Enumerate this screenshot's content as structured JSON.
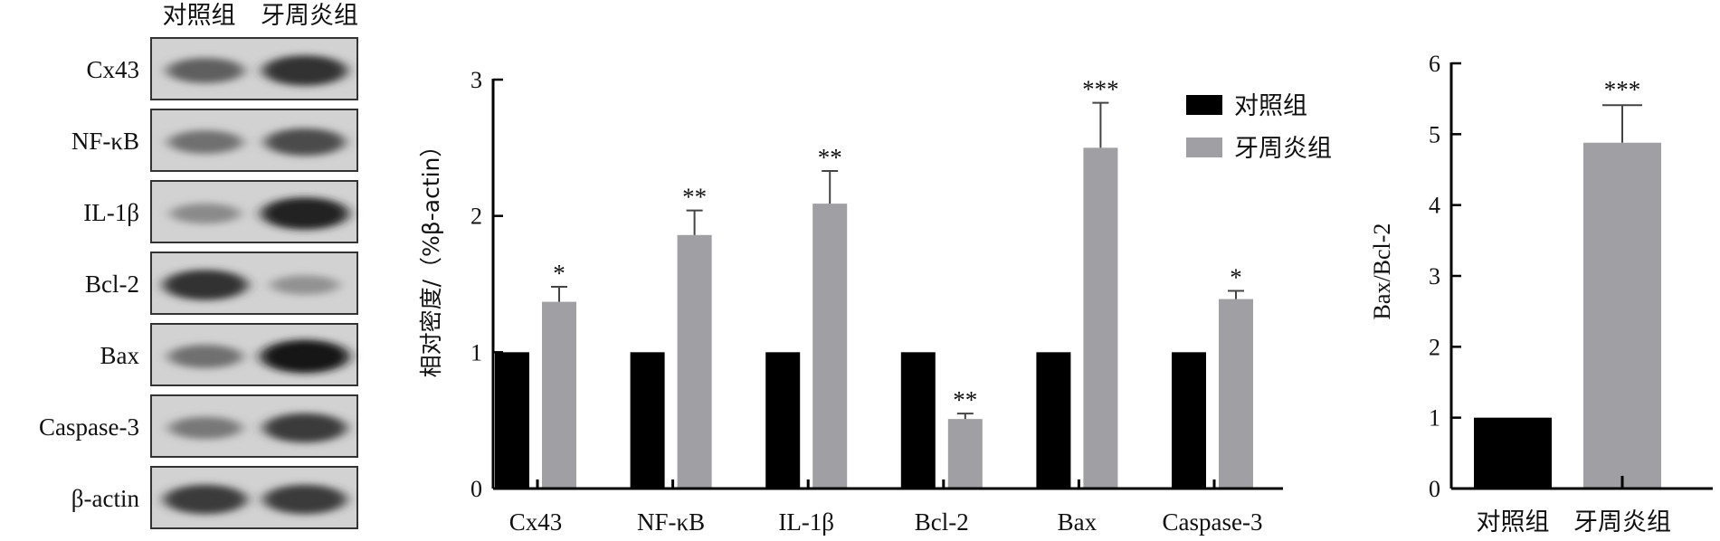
{
  "blot": {
    "headers": [
      "对照组",
      "牙周炎组"
    ],
    "rows": [
      {
        "label": "Cx43",
        "control": 0.55,
        "perio": 0.8
      },
      {
        "label": "NF-κB",
        "control": 0.45,
        "perio": 0.65
      },
      {
        "label": "IL-1β",
        "control": 0.3,
        "perio": 0.9
      },
      {
        "label": "Bcl-2",
        "control": 0.8,
        "perio": 0.25
      },
      {
        "label": "Bax",
        "control": 0.45,
        "perio": 0.95
      },
      {
        "label": "Caspase-3",
        "control": 0.4,
        "perio": 0.75
      },
      {
        "label": "β-actin",
        "control": 0.75,
        "perio": 0.75
      }
    ]
  },
  "chart_data": [
    {
      "type": "bar",
      "categories": [
        "Cx43",
        "NF-κB",
        "IL-1β",
        "Bcl-2",
        "Bax",
        "Caspase-3"
      ],
      "series": [
        {
          "name": "对照组",
          "values": [
            1,
            1,
            1,
            1,
            1,
            1
          ],
          "errors": [
            0,
            0,
            0,
            0,
            0,
            0
          ],
          "color": "#000000"
        },
        {
          "name": "牙周炎组",
          "values": [
            1.37,
            1.86,
            2.09,
            0.51,
            2.5,
            1.39
          ],
          "errors": [
            0.11,
            0.18,
            0.24,
            0.04,
            0.33,
            0.06
          ],
          "color": "#a0a0a4"
        }
      ],
      "significance": [
        "*",
        "**",
        "**",
        "**",
        "***",
        "*"
      ],
      "ylabel": "相对密度/（%β-actin）",
      "ylim": [
        0,
        3
      ],
      "yticks": [
        0,
        1,
        2,
        3
      ],
      "legend": "top-right"
    },
    {
      "type": "bar",
      "categories": [
        "对照组",
        "牙周炎组"
      ],
      "values": [
        1,
        4.88
      ],
      "errors": [
        0,
        0.53
      ],
      "significance": [
        "",
        "***"
      ],
      "colors": [
        "#000000",
        "#a0a0a4"
      ],
      "ylabel": "Bax/Bcl-2",
      "ylim": [
        0,
        6
      ],
      "yticks": [
        0,
        1,
        2,
        3,
        4,
        5,
        6
      ]
    }
  ]
}
